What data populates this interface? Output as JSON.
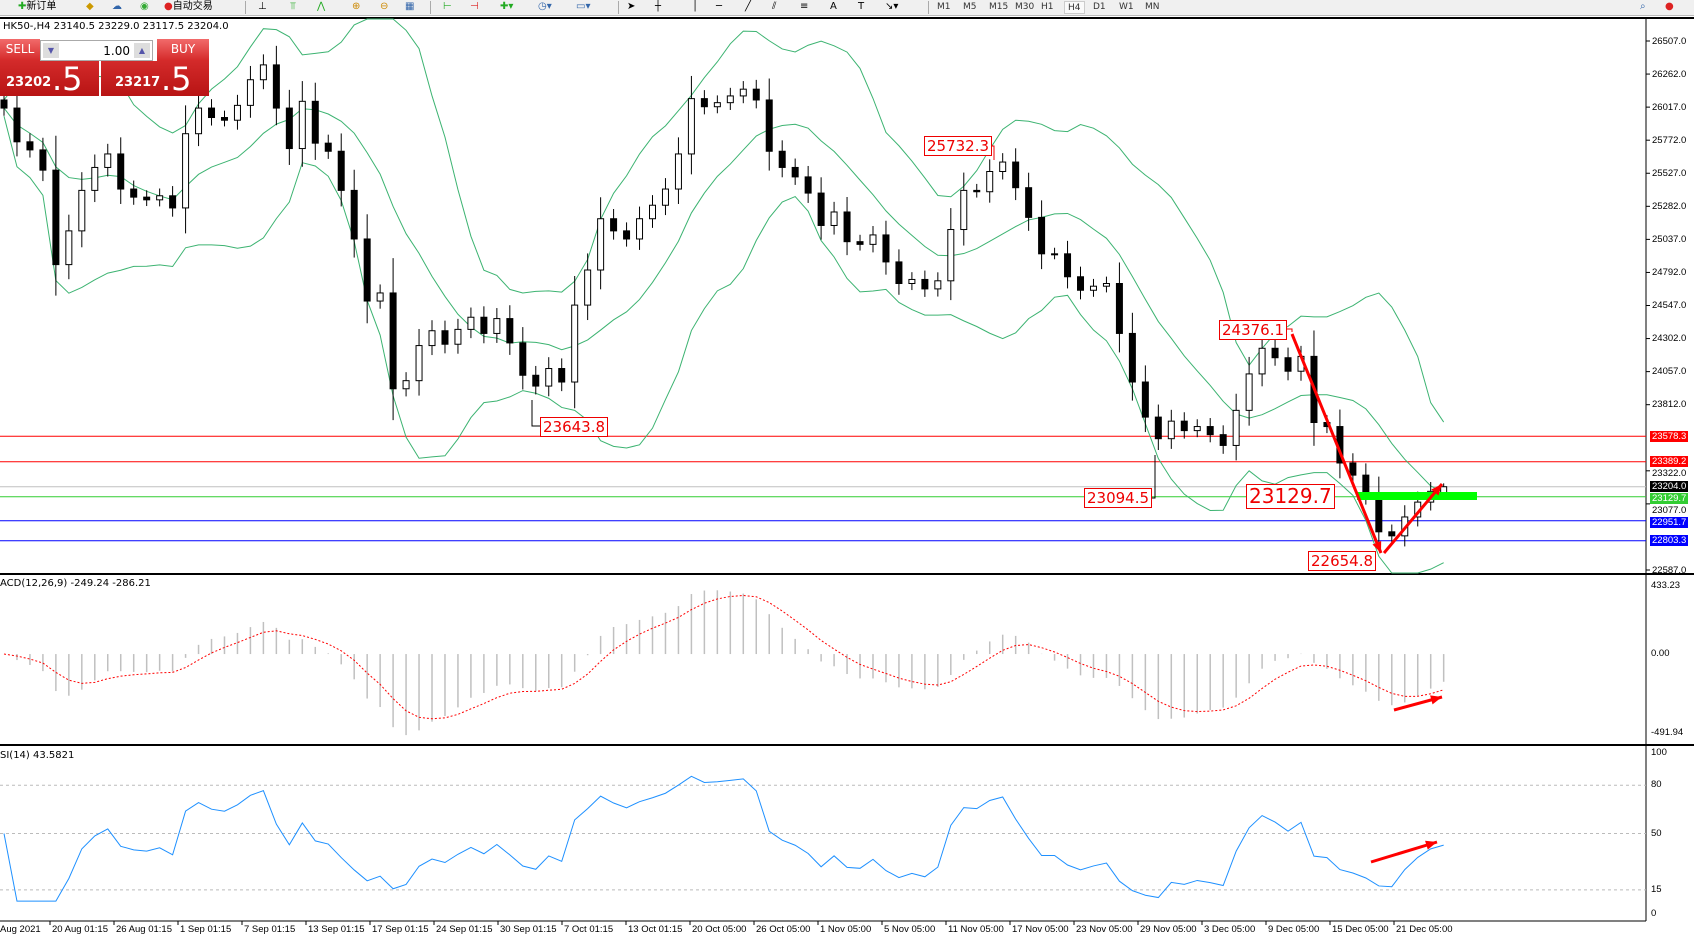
{
  "toolbar": {
    "new_order": "新订单",
    "auto_trading": "自动交易",
    "timeframes": [
      "M1",
      "M5",
      "M15",
      "M30",
      "H1",
      "H4",
      "D1",
      "W1",
      "MN"
    ],
    "active_timeframe": "H4"
  },
  "chart_header": "HK50-,H4  23140.5 23229.0 23117.5 23204.0",
  "one_click": {
    "sell_label": "SELL",
    "buy_label": "BUY",
    "lot": "1.00",
    "sell_price_main": "23202",
    "sell_price_big": ".5",
    "buy_price_main": "23217",
    "buy_price_big": ".5"
  },
  "indicators": {
    "macd_label": "ACD(12,26,9) -249.24 -286.21",
    "rsi_label": "SI(14) 43.5821"
  },
  "chart_data": {
    "type": "candlestick",
    "symbol": "HK50-",
    "timeframe": "H4",
    "last_ohlc": {
      "open": 23140.5,
      "high": 23229.0,
      "low": 23117.5,
      "close": 23204.0
    },
    "closes": [
      26010,
      25760,
      25700,
      25550,
      24850,
      25100,
      25400,
      25570,
      25670,
      25410,
      25350,
      25330,
      25360,
      25270,
      25820,
      26010,
      25940,
      25920,
      26030,
      26220,
      26330,
      26010,
      25710,
      26060,
      25750,
      25690,
      25400,
      25040,
      24580,
      24640,
      23930,
      23990,
      24250,
      24360,
      24260,
      24370,
      24460,
      24340,
      24450,
      24270,
      24030,
      23950,
      24080,
      23980,
      24550,
      24810,
      25190,
      25100,
      25040,
      25190,
      25290,
      25410,
      25670,
      26080,
      26020,
      26050,
      26100,
      26150,
      26070,
      25690,
      25570,
      25500,
      25380,
      25140,
      25240,
      25020,
      25000,
      25070,
      24870,
      24710,
      24740,
      24670,
      24730,
      25110,
      25400,
      25390,
      25540,
      25610,
      25420,
      25200,
      24930,
      24930,
      24760,
      24660,
      24690,
      24710,
      24340,
      23980,
      23720,
      23560,
      23690,
      23620,
      23650,
      23590,
      23510,
      23770,
      24040,
      24230,
      24160,
      24060,
      24170,
      23680,
      23650,
      23380,
      23290,
      23150,
      22870,
      22840,
      22980,
      23090,
      23170,
      23204
    ],
    "price_axis": {
      "min": 22587.0,
      "max": 26507.0,
      "ticks": [
        "26507.0",
        "26262.0",
        "26017.0",
        "25772.0",
        "25527.0",
        "25282.0",
        "25037.0",
        "24792.0",
        "24547.0",
        "24302.0",
        "24057.0",
        "23812.0",
        "23322.0",
        "23077.0",
        "22587.0"
      ]
    },
    "levels": [
      {
        "price": "23578.3",
        "color": "#ff0000"
      },
      {
        "price": "23389.2",
        "color": "#ff0000"
      },
      {
        "price": "23204.0",
        "color": "#000000",
        "line": "#c0c0c0"
      },
      {
        "price": "23129.7",
        "color": "#32cd32"
      },
      {
        "price": "22951.7",
        "color": "#0000ff"
      },
      {
        "price": "22803.3",
        "color": "#0000ff"
      }
    ],
    "annotations": [
      "25732.3",
      "23643.8",
      "23094.5",
      "23129.7",
      "24376.1",
      "22654.8"
    ],
    "macd_axis": {
      "max": "433.23",
      "zero": "0.00",
      "min": "-491.94"
    },
    "rsi_axis": {
      "ticks": [
        "100",
        "80",
        "50",
        "15",
        "0"
      ]
    },
    "x_ticks": [
      "Aug 2021",
      "20 Aug 01:15",
      "26 Aug 01:15",
      "1 Sep 01:15",
      "7 Sep 01:15",
      "13 Sep 01:15",
      "17 Sep 01:15",
      "24 Sep 01:15",
      "30 Sep 01:15",
      "7 Oct 01:15",
      "13 Oct 01:15",
      "20 Oct 05:00",
      "26 Oct 05:00",
      "1 Nov 05:00",
      "5 Nov 05:00",
      "11 Nov 05:00",
      "17 Nov 05:00",
      "23 Nov 05:00",
      "29 Nov 05:00",
      "3 Dec 05:00",
      "9 Dec 05:00",
      "15 Dec 05:00",
      "21 Dec 05:00"
    ],
    "colors": {
      "bands": "#3cb371",
      "macd_hist": "#c0c0c0",
      "macd_signal": "#ff0000",
      "rsi": "#1e90ff",
      "arrows": "#ff0000",
      "support_zone": "#00ff00"
    }
  }
}
